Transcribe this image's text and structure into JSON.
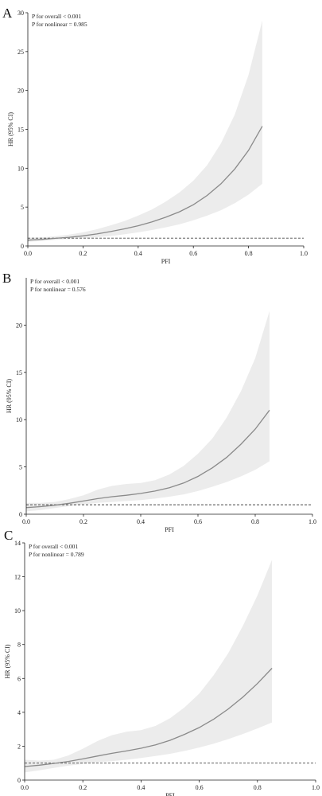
{
  "colors": {
    "band": "#ececec",
    "curve": "#8a8a8a",
    "reference": "#4a4a4a",
    "axis": "#222222",
    "text": "#222222"
  },
  "chart_data": [
    {
      "type": "line",
      "panel_label": "A",
      "xlabel": "PFI",
      "ylabel": "HR (95% CI)",
      "xlim": [
        0.0,
        1.0
      ],
      "ylim": [
        0,
        30
      ],
      "xticks": [
        0.0,
        0.2,
        0.4,
        0.6,
        0.8,
        1.0
      ],
      "yticks": [
        0,
        5,
        10,
        15,
        20,
        25,
        30
      ],
      "xtick_labels": [
        "0.0",
        "0.2",
        "0.4",
        "0.6",
        "0.8",
        "1.0"
      ],
      "ytick_labels": [
        "0",
        "5",
        "10",
        "15",
        "20",
        "25",
        "30"
      ],
      "annotations": [
        "P for overall < 0.001",
        "P for nonlinear = 0.985"
      ],
      "reference_line": 1,
      "series": [
        {
          "x": [
            0.0,
            0.05,
            0.1,
            0.15,
            0.2,
            0.25,
            0.3,
            0.35,
            0.4,
            0.45,
            0.5,
            0.55,
            0.6,
            0.65,
            0.7,
            0.75,
            0.8,
            0.85
          ],
          "y": [
            0.75,
            0.85,
            0.98,
            1.12,
            1.3,
            1.55,
            1.85,
            2.2,
            2.6,
            3.1,
            3.7,
            4.4,
            5.3,
            6.5,
            8.0,
            9.9,
            12.3,
            15.4
          ],
          "lower": [
            0.55,
            0.65,
            0.78,
            0.9,
            1.0,
            1.12,
            1.28,
            1.5,
            1.75,
            2.05,
            2.4,
            2.8,
            3.3,
            3.9,
            4.6,
            5.5,
            6.6,
            8.0
          ],
          "upper": [
            1.05,
            1.1,
            1.25,
            1.45,
            1.75,
            2.15,
            2.65,
            3.2,
            3.9,
            4.7,
            5.7,
            6.9,
            8.4,
            10.4,
            13.2,
            16.9,
            22.0,
            29.0
          ]
        }
      ]
    },
    {
      "type": "line",
      "panel_label": "B",
      "xlabel": "PFI",
      "ylabel": "HR (95% CI)",
      "xlim": [
        0.0,
        1.0
      ],
      "ylim": [
        0,
        25
      ],
      "xticks": [
        0.0,
        0.2,
        0.4,
        0.6,
        0.8,
        1.0
      ],
      "yticks": [
        0,
        5,
        10,
        15,
        20
      ],
      "xtick_labels": [
        "0.0",
        "0.2",
        "0.4",
        "0.6",
        "0.8",
        "1.0"
      ],
      "ytick_labels": [
        "0",
        "5",
        "10",
        "15",
        "20"
      ],
      "annotations": [
        "P for overall < 0.001",
        "P for nonlinear = 0.576"
      ],
      "reference_line": 1,
      "series": [
        {
          "x": [
            0.0,
            0.05,
            0.1,
            0.15,
            0.2,
            0.25,
            0.3,
            0.35,
            0.4,
            0.45,
            0.5,
            0.55,
            0.6,
            0.65,
            0.7,
            0.75,
            0.8,
            0.85
          ],
          "y": [
            0.7,
            0.8,
            0.95,
            1.15,
            1.4,
            1.65,
            1.85,
            2.0,
            2.2,
            2.45,
            2.8,
            3.3,
            4.0,
            4.9,
            6.0,
            7.4,
            9.0,
            11.0
          ],
          "lower": [
            0.3,
            0.45,
            0.65,
            0.85,
            1.05,
            1.2,
            1.3,
            1.4,
            1.5,
            1.65,
            1.85,
            2.1,
            2.45,
            2.9,
            3.4,
            4.0,
            4.7,
            5.6
          ],
          "upper": [
            1.2,
            1.2,
            1.3,
            1.6,
            2.0,
            2.6,
            3.0,
            3.2,
            3.3,
            3.6,
            4.2,
            5.1,
            6.4,
            8.0,
            10.2,
            13.0,
            16.5,
            21.5
          ]
        }
      ]
    },
    {
      "type": "line",
      "panel_label": "C",
      "xlabel": "PFI",
      "ylabel": "HR (95% CI)",
      "xlim": [
        0.0,
        1.0
      ],
      "ylim": [
        0,
        14
      ],
      "xticks": [
        0.0,
        0.2,
        0.4,
        0.6,
        0.8,
        1.0
      ],
      "yticks": [
        0,
        2,
        4,
        6,
        8,
        10,
        12,
        14
      ],
      "xtick_labels": [
        "0.0",
        "0.2",
        "0.4",
        "0.6",
        "0.8",
        "1.0"
      ],
      "ytick_labels": [
        "0",
        "2",
        "4",
        "6",
        "8",
        "10",
        "12",
        "14"
      ],
      "annotations": [
        "P for overall < 0.001",
        "P for nonlinear = 0.789"
      ],
      "reference_line": 1,
      "series": [
        {
          "x": [
            0.0,
            0.05,
            0.1,
            0.15,
            0.2,
            0.25,
            0.3,
            0.35,
            0.4,
            0.45,
            0.5,
            0.55,
            0.6,
            0.65,
            0.7,
            0.75,
            0.8,
            0.85
          ],
          "y": [
            0.8,
            0.88,
            0.98,
            1.1,
            1.25,
            1.42,
            1.58,
            1.72,
            1.88,
            2.08,
            2.35,
            2.7,
            3.1,
            3.6,
            4.2,
            4.9,
            5.7,
            6.6
          ],
          "lower": [
            0.45,
            0.58,
            0.72,
            0.85,
            0.95,
            1.05,
            1.12,
            1.2,
            1.3,
            1.42,
            1.55,
            1.72,
            1.92,
            2.15,
            2.42,
            2.72,
            3.05,
            3.4
          ],
          "upper": [
            1.2,
            1.15,
            1.2,
            1.45,
            1.85,
            2.3,
            2.65,
            2.85,
            2.95,
            3.2,
            3.65,
            4.3,
            5.1,
            6.2,
            7.5,
            9.1,
            10.9,
            13.0
          ]
        }
      ]
    }
  ]
}
